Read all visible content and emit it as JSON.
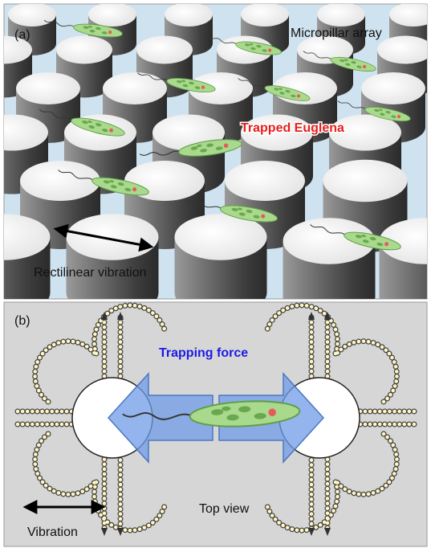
{
  "panels": [
    {
      "label": "(a)",
      "annotations": [
        "Micropillar array",
        "Trapped Euglena",
        "Rectilinear vibration"
      ]
    },
    {
      "label": "(b)",
      "annotations": [
        "Trapping force",
        "Top view",
        "Vibration"
      ]
    }
  ]
}
